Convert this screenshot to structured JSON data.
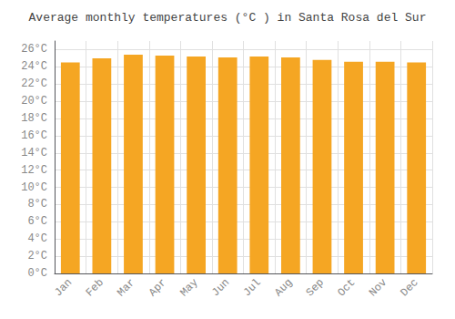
{
  "chart_data": {
    "type": "bar",
    "title": "Average monthly temperatures (°C ) in Santa Rosa del Sur",
    "categories": [
      "Jan",
      "Feb",
      "Mar",
      "Apr",
      "May",
      "Jun",
      "Jul",
      "Aug",
      "Sep",
      "Oct",
      "Nov",
      "Dec"
    ],
    "values": [
      24.5,
      25.0,
      25.4,
      25.3,
      25.2,
      25.1,
      25.2,
      25.1,
      24.8,
      24.6,
      24.6,
      24.5
    ],
    "color": "#F5A623",
    "ylim": [
      0,
      27
    ],
    "yticks": [
      {
        "value": 0,
        "label": "0°C"
      },
      {
        "value": 2,
        "label": "2°C"
      },
      {
        "value": 4,
        "label": "4°C"
      },
      {
        "value": 6,
        "label": "6°C"
      },
      {
        "value": 8,
        "label": "8°C"
      },
      {
        "value": 10,
        "label": "10°C"
      },
      {
        "value": 12,
        "label": "12°C"
      },
      {
        "value": 14,
        "label": "14°C"
      },
      {
        "value": 16,
        "label": "16°C"
      },
      {
        "value": 18,
        "label": "18°C"
      },
      {
        "value": 20,
        "label": "20°C"
      },
      {
        "value": 22,
        "label": "22°C"
      },
      {
        "value": 24,
        "label": "24°C"
      },
      {
        "value": 26,
        "label": "26°C"
      }
    ],
    "grid": true
  }
}
